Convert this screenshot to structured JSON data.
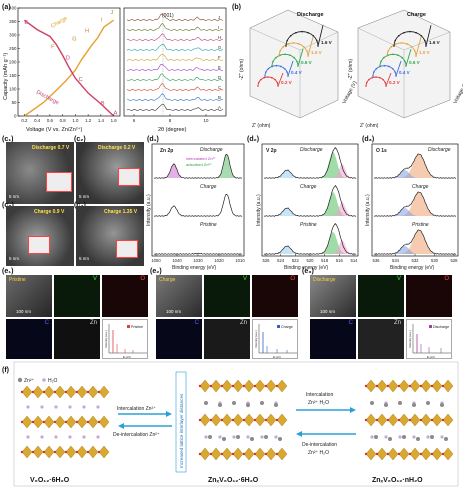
{
  "panel_labels": {
    "a": "(a)",
    "b": "(b)",
    "c1": "(c₁)",
    "c2": "(c₂)",
    "c3": "(c₃)",
    "c4": "(c₄)",
    "d1": "(d₁)",
    "d2": "(d₂)",
    "d3": "(d₃)",
    "e1": "(e₁)",
    "e2": "(e₂)",
    "e3": "(e₃)",
    "f": "(f)"
  },
  "panel_a": {
    "ylabel": "Capacity (mAh g⁻¹)",
    "xlabel": "Voltage (V vs. Zn/Zn²⁺)",
    "xrd_xlabel": "2θ (degree)",
    "xrd_peak": "(001)",
    "charge_label": "Charge",
    "discharge_label": "Discharge",
    "letters": [
      "A",
      "B",
      "C",
      "D",
      "E",
      "F",
      "G",
      "H",
      "I",
      "J"
    ],
    "xticks": [
      "0.2",
      "0.4",
      "0.6",
      "0.8",
      "1.0",
      "1.2",
      "1.4",
      "1.6"
    ],
    "yticks": [
      "0",
      "50",
      "100",
      "150",
      "200",
      "250",
      "300",
      "350",
      "400"
    ],
    "xrd_xticks": [
      "6",
      "8",
      "10"
    ],
    "ylim": [
      0,
      400
    ],
    "xlim": [
      0.1,
      1.7
    ],
    "charge_curve": [
      [
        0.2,
        0
      ],
      [
        0.5,
        50
      ],
      [
        0.7,
        95
      ],
      [
        0.85,
        130
      ],
      [
        1.0,
        170
      ],
      [
        1.1,
        210
      ],
      [
        1.25,
        260
      ],
      [
        1.35,
        290
      ],
      [
        1.45,
        330
      ],
      [
        1.6,
        355
      ]
    ],
    "discharge_curve": [
      [
        1.6,
        0
      ],
      [
        1.4,
        45
      ],
      [
        1.2,
        85
      ],
      [
        1.0,
        140
      ],
      [
        0.9,
        180
      ],
      [
        0.8,
        225
      ],
      [
        0.7,
        265
      ],
      [
        0.6,
        295
      ],
      [
        0.4,
        320
      ],
      [
        0.2,
        355
      ]
    ]
  },
  "panel_b": {
    "discharge_title": "Discharge",
    "charge_title": "Charge",
    "ylabel": "-Z'' (ohm)",
    "xlabel": "Z' (ohm)",
    "zlabel": "Voltage (V)",
    "discharge_voltages": [
      "0.2 V",
      "0.4 V",
      "0.6 V",
      "1.0 V",
      "1.6 V"
    ],
    "charge_voltages": [
      "0.2 V",
      "0.4 V",
      "0.6 V",
      "1.0 V",
      "1.6 V"
    ],
    "series_colors": [
      "#e23b3b",
      "#3b6de2",
      "#2aa84a",
      "#e2a23b",
      "#222222"
    ]
  },
  "panel_c": {
    "c1": "Discharge 0.7 V",
    "c2": "Discharge 0.2 V",
    "c3": "Charge 0.9 V",
    "c4": "Charge 1.35 V",
    "scale": "5 nm"
  },
  "panel_d": {
    "d1_title": "Zn 2p",
    "d2_title": "V 2p",
    "d3_title": "O 1s",
    "row1": "Discharge",
    "row2": "Charge",
    "row3": "Pristine",
    "ylabel": "Intensity (a.u.)",
    "xlabel": "Binding energy (eV)",
    "d1_xticks": [
      "1050",
      "1040",
      "1030",
      "1020",
      "1010"
    ],
    "d2_xticks": [
      "526",
      "524",
      "522",
      "520",
      "518",
      "516",
      "514"
    ],
    "d3_xticks": [
      "536",
      "534",
      "532",
      "530",
      "528"
    ],
    "legend_intercalated": "intercalated Zn²⁺",
    "legend_adsorbed": "adsorbed Zn²⁺"
  },
  "panel_e": {
    "e1_tag": "Pristine",
    "e2_tag": "Charge",
    "e3_tag": "Discharge",
    "elements": [
      "V",
      "O",
      "C",
      "Zn"
    ],
    "scale": "100 nm",
    "eds_ylabel": "Intensity (a.u.)",
    "eds_xlabel": "E (eV)"
  },
  "panel_f": {
    "legend_zn": "Zn²⁺",
    "legend_h2o": "H₂O",
    "arrow1_top": "Intercalation Zn²⁺",
    "arrow1_bot": "De-intercalation Zn²⁺",
    "vertical_label": "Increased lattice interlayer distances",
    "arrow2_top": "Intercalation",
    "arrow2_top2": "Zn²⁺ H₂O",
    "arrow2_bot": "De-intercalation",
    "arrow2_bot2": "Zn²⁺ H₂O",
    "label_left": "V₆O₁₂·6H₂O",
    "label_mid": "ZnₓV₆O₁₂·6H₂O",
    "label_right": "ZnₓV₆O₁₂·nH₂O"
  }
}
